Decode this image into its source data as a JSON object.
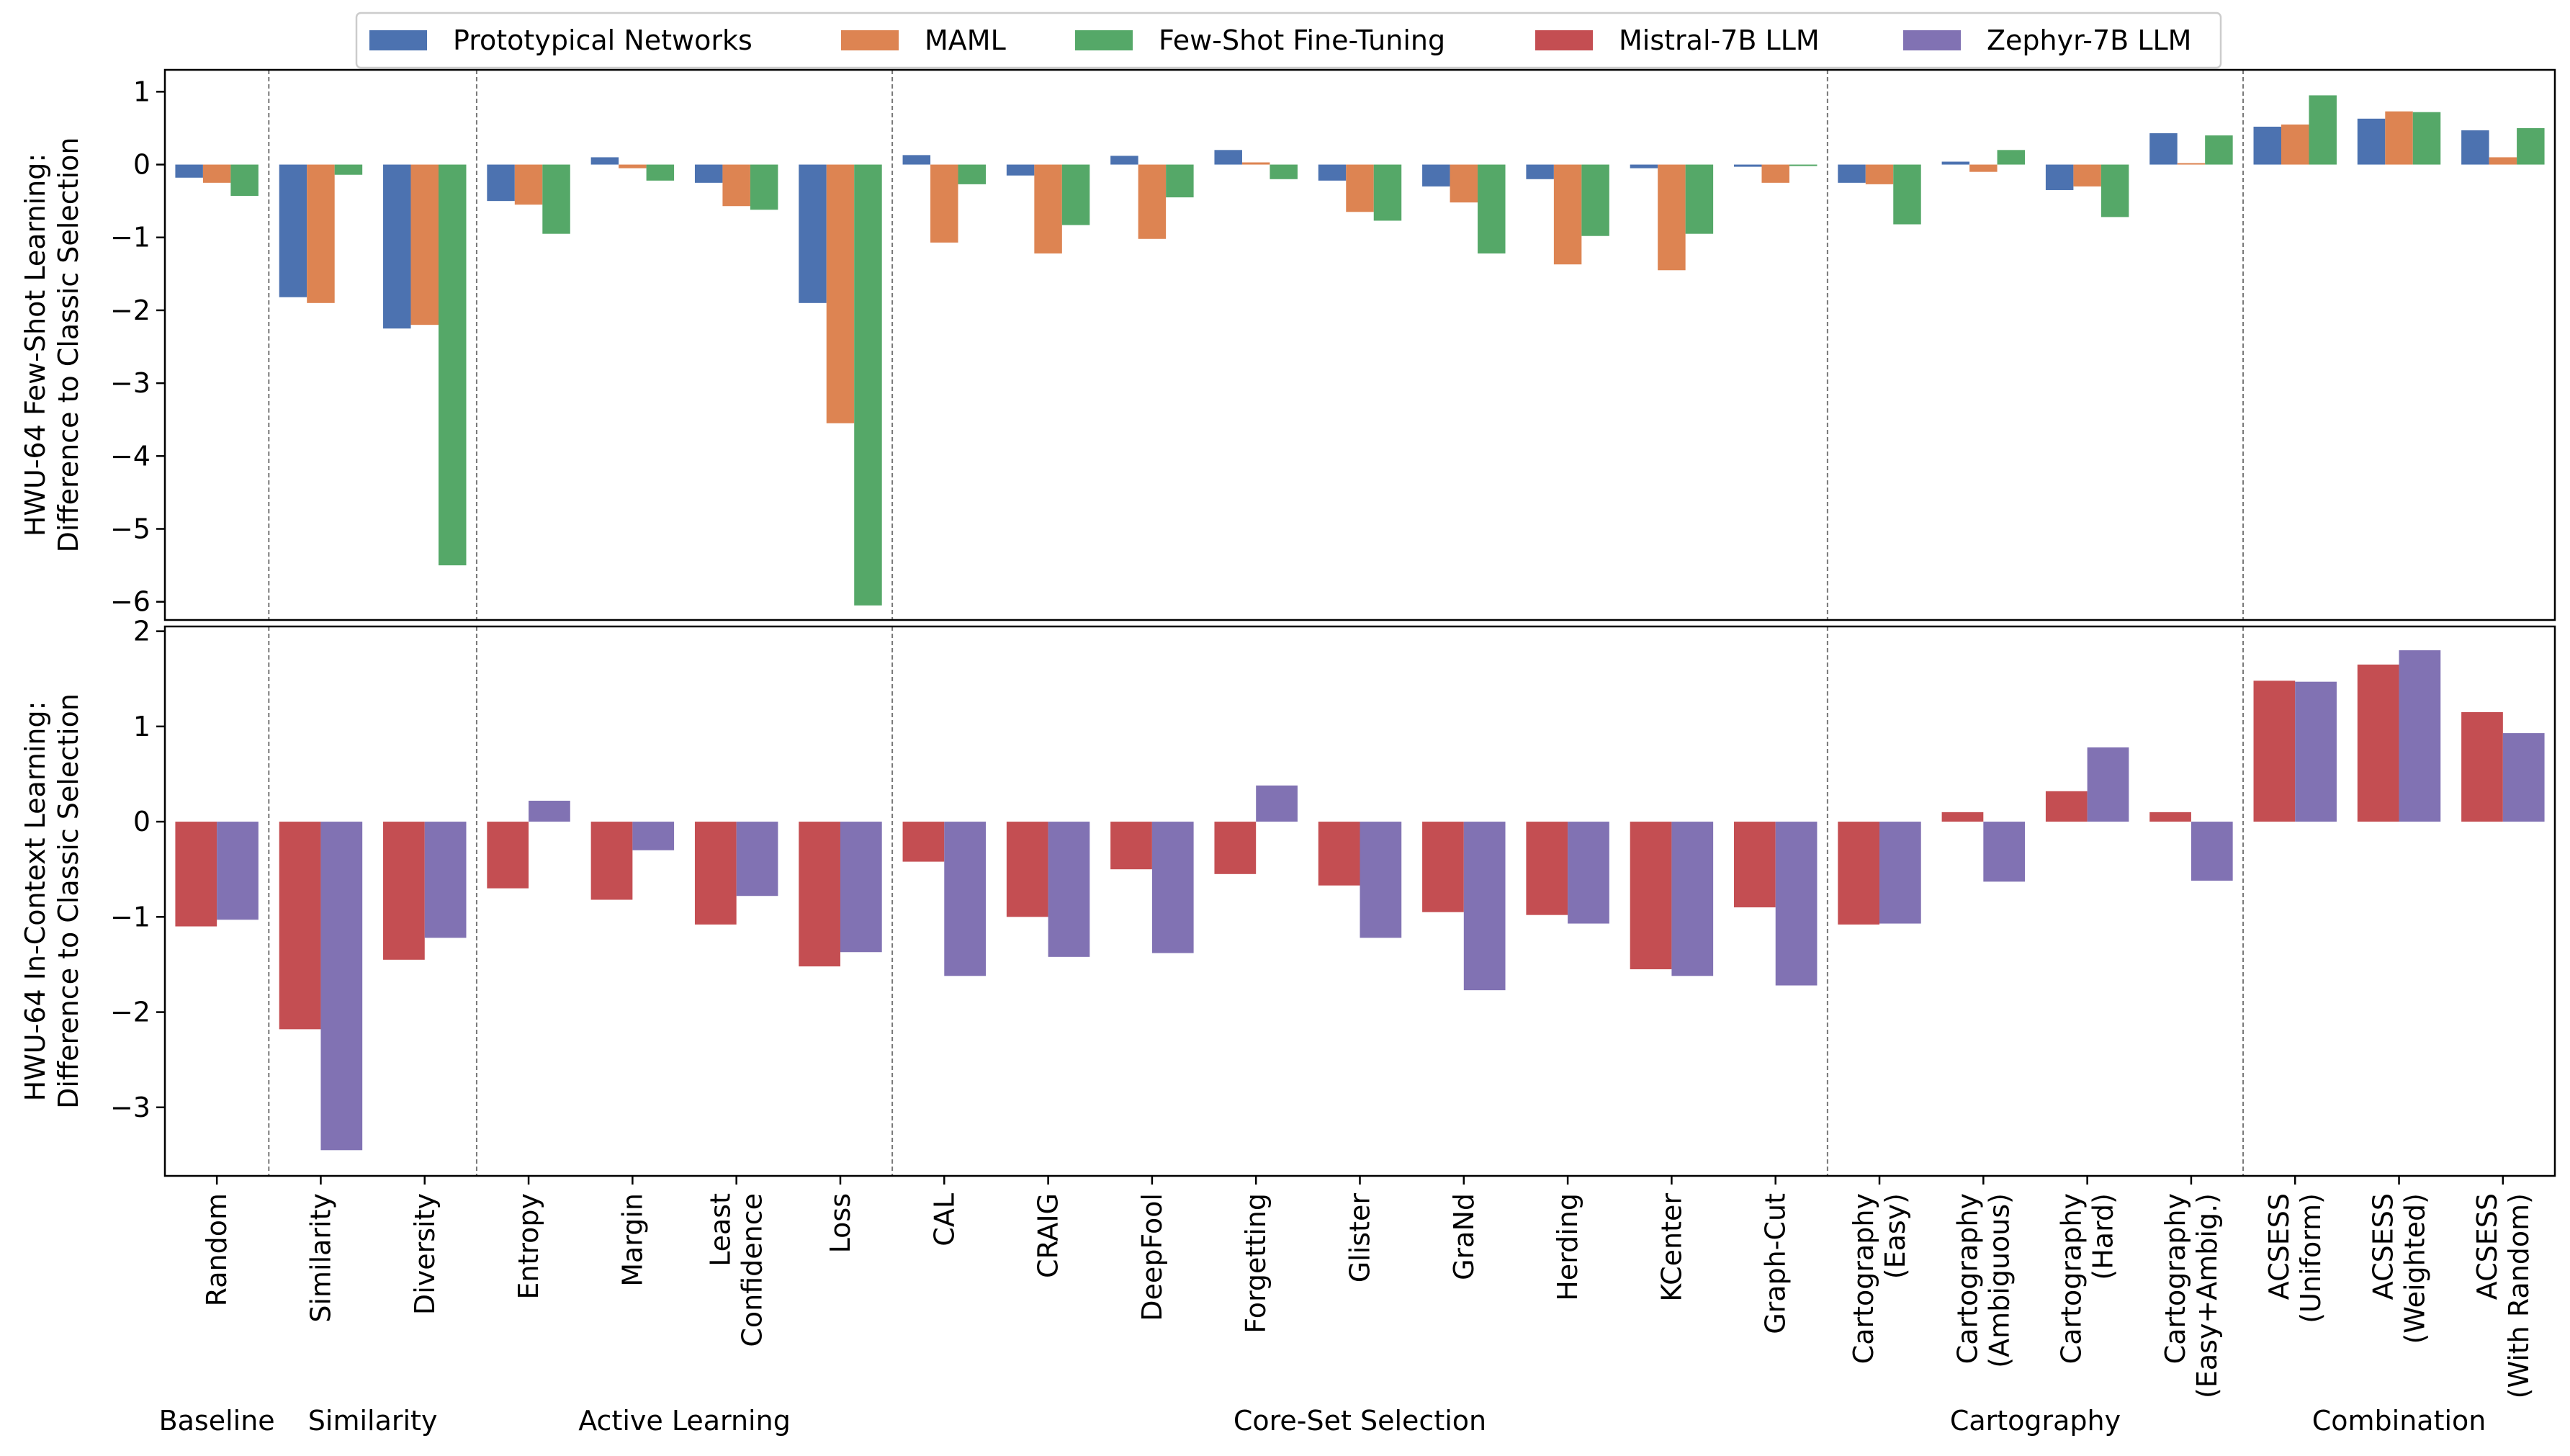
{
  "chart_data": {
    "type": "bar",
    "categories": [
      "Random",
      "Similarity",
      "Diversity",
      "Entropy",
      "Margin",
      "Least\nConfidence",
      "Loss",
      "CAL",
      "CRAIG",
      "DeepFool",
      "Forgetting",
      "Glister",
      "GraNd",
      "Herding",
      "KCenter",
      "Graph-Cut",
      "Cartography\n(Easy)",
      "Cartography\n(Ambiguous)",
      "Cartography\n(Hard)",
      "Cartography\n(Easy+Ambig.)",
      "ACSESS\n(Uniform)",
      "ACSESS\n(Weighted)",
      "ACSESS\n(With Random)"
    ],
    "groups": [
      {
        "label": "Baseline",
        "categories": [
          "Random"
        ]
      },
      {
        "label": "Similarity",
        "categories": [
          "Similarity",
          "Diversity"
        ]
      },
      {
        "label": "Active Learning",
        "categories": [
          "Entropy",
          "Margin",
          "Least\nConfidence",
          "Loss"
        ]
      },
      {
        "label": "Core-Set Selection",
        "categories": [
          "CAL",
          "CRAIG",
          "DeepFool",
          "Forgetting",
          "Glister",
          "GraNd",
          "Herding",
          "KCenter",
          "Graph-Cut"
        ]
      },
      {
        "label": "Cartography",
        "categories": [
          "Cartography\n(Easy)",
          "Cartography\n(Ambiguous)",
          "Cartography\n(Hard)",
          "Cartography\n(Easy+Ambig.)"
        ]
      },
      {
        "label": "Combination",
        "categories": [
          "ACSESS\n(Uniform)",
          "ACSESS\n(Weighted)",
          "ACSESS\n(With Random)"
        ]
      }
    ],
    "legend": [
      {
        "name": "Prototypical Networks",
        "color": "#4c72b0"
      },
      {
        "name": "MAML",
        "color": "#dd8452"
      },
      {
        "name": "Few-Shot Fine-Tuning",
        "color": "#55a868"
      },
      {
        "name": "Mistral-7B LLM",
        "color": "#c44e52"
      },
      {
        "name": "Zephyr-7B LLM",
        "color": "#8172b3"
      }
    ],
    "legend_position": "top-center",
    "panels": [
      {
        "ylabel": [
          "HWU-64 Few-Shot Learning:",
          "Difference to Classic Selection"
        ],
        "ylim": [
          -6.25,
          1.3
        ],
        "yticks": [
          1,
          0,
          -1,
          -2,
          -3,
          -4,
          -5,
          -6
        ],
        "ytick_labels": [
          "1",
          "0",
          "−1",
          "−2",
          "−3",
          "−4",
          "−5",
          "−6"
        ],
        "series": [
          {
            "name": "Prototypical Networks",
            "color": "#4c72b0",
            "values": [
              -0.18,
              -1.82,
              -2.25,
              -0.5,
              0.1,
              -0.25,
              -1.9,
              0.13,
              -0.15,
              0.12,
              0.2,
              -0.22,
              -0.3,
              -0.2,
              -0.05,
              -0.03,
              -0.25,
              0.04,
              -0.35,
              0.43,
              0.52,
              0.63,
              0.47
            ]
          },
          {
            "name": "MAML",
            "color": "#dd8452",
            "values": [
              -0.25,
              -1.9,
              -2.2,
              -0.55,
              -0.05,
              -0.57,
              -3.55,
              -1.07,
              -1.22,
              -1.02,
              0.03,
              -0.65,
              -0.52,
              -1.37,
              -1.45,
              -0.25,
              -0.27,
              -0.1,
              -0.3,
              0.02,
              0.55,
              0.73,
              0.1
            ]
          },
          {
            "name": "Few-Shot Fine-Tuning",
            "color": "#55a868",
            "values": [
              -0.43,
              -0.14,
              -5.5,
              -0.95,
              -0.22,
              -0.62,
              -6.05,
              -0.27,
              -0.83,
              -0.45,
              -0.2,
              -0.77,
              -1.22,
              -0.98,
              -0.95,
              -0.02,
              -0.82,
              0.2,
              -0.72,
              0.4,
              0.95,
              0.72,
              0.5
            ]
          }
        ]
      },
      {
        "ylabel": [
          "HWU-64 In-Context Learning:",
          "Difference to Classic Selection"
        ],
        "ylim": [
          -3.72,
          2.05
        ],
        "yticks": [
          2,
          1,
          0,
          -1,
          -2,
          -3
        ],
        "ytick_labels": [
          "2",
          "1",
          "0",
          "−1",
          "−2",
          "−3"
        ],
        "series": [
          {
            "name": "Mistral-7B LLM",
            "color": "#c44e52",
            "values": [
              -1.1,
              -2.18,
              -1.45,
              -0.7,
              -0.82,
              -1.08,
              -1.52,
              -0.42,
              -1.0,
              -0.5,
              -0.55,
              -0.67,
              -0.95,
              -0.98,
              -1.55,
              -0.9,
              -1.08,
              0.1,
              0.32,
              0.1,
              1.48,
              1.65,
              1.15
            ]
          },
          {
            "name": "Zephyr-7B LLM",
            "color": "#8172b3",
            "values": [
              -1.03,
              -3.45,
              -1.22,
              0.22,
              -0.3,
              -0.78,
              -1.37,
              -1.62,
              -1.42,
              -1.38,
              0.38,
              -1.22,
              -1.77,
              -1.07,
              -1.62,
              -1.72,
              -1.07,
              -0.63,
              0.78,
              -0.62,
              1.47,
              1.8,
              0.93
            ]
          }
        ]
      }
    ]
  }
}
